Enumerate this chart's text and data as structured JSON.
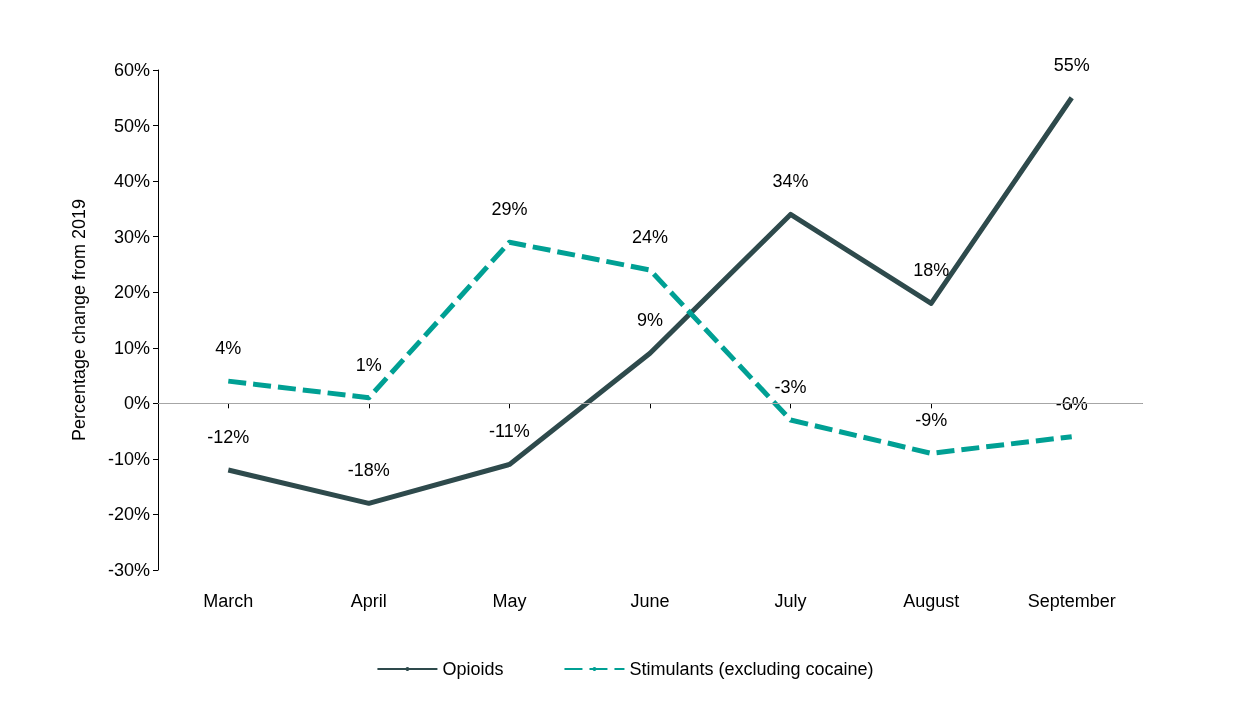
{
  "chart_data": {
    "type": "line",
    "ylabel": "Percentage change from 2019",
    "categories": [
      "March",
      "April",
      "May",
      "June",
      "July",
      "August",
      "September"
    ],
    "series": [
      {
        "name": "Opioids",
        "color": "#2e4a4c",
        "line_style": "solid",
        "values": [
          -12,
          -18,
          -11,
          9,
          34,
          18,
          55
        ],
        "value_labels": [
          "-12%",
          "-18%",
          "-11%",
          "9%",
          "34%",
          "18%",
          "55%"
        ]
      },
      {
        "name": "Stimulants (excluding cocaine)",
        "color": "#00a094",
        "line_style": "dashed",
        "values": [
          4,
          1,
          29,
          24,
          -3,
          -9,
          -6
        ],
        "value_labels": [
          "4%",
          "1%",
          "29%",
          "24%",
          "-3%",
          "-9%",
          "-6%"
        ]
      }
    ],
    "ylim": [
      -30,
      60
    ],
    "yticks": [
      {
        "value": -30,
        "label": "-30%"
      },
      {
        "value": -20,
        "label": "-20%"
      },
      {
        "value": -10,
        "label": "-10%"
      },
      {
        "value": 0,
        "label": "0%"
      },
      {
        "value": 10,
        "label": "10%"
      },
      {
        "value": 20,
        "label": "20%"
      },
      {
        "value": 30,
        "label": "30%"
      },
      {
        "value": 40,
        "label": "40%"
      },
      {
        "value": 50,
        "label": "50%"
      },
      {
        "value": 60,
        "label": "60%"
      }
    ],
    "ref_lines": [
      {
        "axis": "y",
        "value": 0,
        "color": "#a6a6a6"
      }
    ],
    "grid": false,
    "legend": "bottom",
    "marker": "none"
  }
}
